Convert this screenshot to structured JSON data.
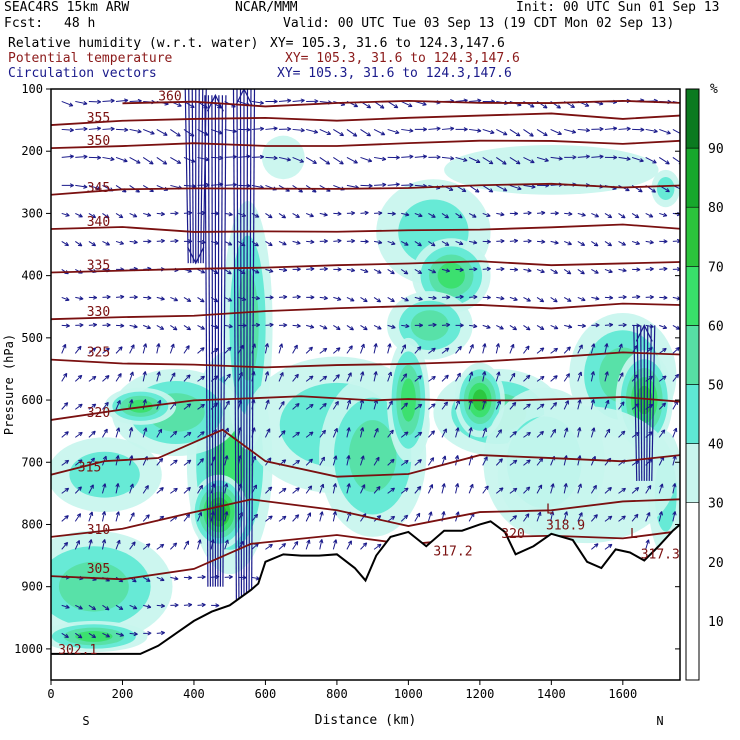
{
  "header": {
    "model": "SEAC4RS 15km ARW",
    "org": "NCAR/MMM",
    "init": "Init: 00 UTC Sun 01 Sep 13",
    "fcst_label": "Fcst:",
    "fcst_value": "48 h",
    "valid": "Valid: 00 UTC Tue 03 Sep 13 (19 CDT Mon 02 Sep 13)",
    "fields": [
      {
        "name": "Relative humidity (w.r.t. water)",
        "xy": "XY= 105.3, 31.6 to 124.3,147.6",
        "color": "#000000"
      },
      {
        "name": "Potential temperature",
        "xy": "XY= 105.3, 31.6 to 124.3,147.6",
        "color": "#8b1a1a"
      },
      {
        "name": "Circulation vectors",
        "xy": "XY= 105.3, 31.6 to 124.3,147.6",
        "color": "#1a1a8b"
      }
    ]
  },
  "chart_data": {
    "type": "heatmap",
    "xlabel": "Distance (km)",
    "ylabel": "Pressure (hPa)",
    "xlim": [
      0,
      1760
    ],
    "ylim": [
      1050,
      100
    ],
    "x_ticks": [
      0,
      200,
      400,
      600,
      800,
      1000,
      1200,
      1400,
      1600
    ],
    "y_ticks": [
      100,
      200,
      300,
      400,
      500,
      600,
      700,
      800,
      900,
      1000
    ],
    "x_end_labels": [
      "S",
      "N"
    ],
    "colorbar": {
      "unit": "%",
      "ticks": [
        10,
        20,
        30,
        40,
        50,
        60,
        70,
        80,
        90
      ],
      "bins": [
        {
          "from": 0,
          "to": 30,
          "color": "#ffffff"
        },
        {
          "from": 30,
          "to": 40,
          "color": "#c8f5ee"
        },
        {
          "from": 40,
          "to": 50,
          "color": "#5ee8d4"
        },
        {
          "from": 50,
          "to": 60,
          "color": "#57dfa4"
        },
        {
          "from": 60,
          "to": 70,
          "color": "#39e06a"
        },
        {
          "from": 70,
          "to": 80,
          "color": "#2bc43c"
        },
        {
          "from": 80,
          "to": 90,
          "color": "#17a82c"
        },
        {
          "from": 90,
          "to": 100,
          "color": "#0b7a20"
        }
      ]
    },
    "theta_contours": [
      {
        "label": "305",
        "points": [
          [
            0,
            883
          ],
          [
            200,
            885
          ],
          [
            400,
            870
          ],
          [
            560,
            830
          ],
          [
            800,
            820
          ],
          [
            1000,
            830
          ],
          [
            1200,
            820
          ],
          [
            1400,
            815
          ],
          [
            1600,
            820
          ],
          [
            1760,
            810
          ]
        ]
      },
      {
        "label": "310",
        "points": [
          [
            0,
            820
          ],
          [
            200,
            810
          ],
          [
            380,
            780
          ],
          [
            560,
            760
          ],
          [
            800,
            780
          ],
          [
            1000,
            800
          ],
          [
            1200,
            780
          ],
          [
            1400,
            780
          ],
          [
            1600,
            760
          ],
          [
            1760,
            760
          ]
        ]
      },
      {
        "label": "315",
        "points": [
          [
            0,
            720
          ],
          [
            150,
            700
          ],
          [
            300,
            690
          ],
          [
            480,
            650
          ],
          [
            600,
            700
          ],
          [
            800,
            720
          ],
          [
            1000,
            720
          ],
          [
            1200,
            690
          ],
          [
            1400,
            690
          ],
          [
            1600,
            700
          ],
          [
            1760,
            690
          ]
        ]
      },
      {
        "label": "320",
        "points": [
          [
            0,
            632
          ],
          [
            200,
            615
          ],
          [
            400,
            598
          ],
          [
            560,
            600
          ],
          [
            700,
            597
          ],
          [
            900,
            603
          ],
          [
            1000,
            598
          ],
          [
            1100,
            600
          ],
          [
            1300,
            598
          ],
          [
            1500,
            600
          ],
          [
            1600,
            598
          ],
          [
            1760,
            600
          ]
        ]
      },
      {
        "label": "325",
        "points": [
          [
            0,
            535
          ],
          [
            200,
            540
          ],
          [
            400,
            545
          ],
          [
            600,
            548
          ],
          [
            800,
            545
          ],
          [
            1000,
            540
          ],
          [
            1200,
            535
          ],
          [
            1400,
            530
          ],
          [
            1600,
            525
          ],
          [
            1760,
            530
          ]
        ]
      },
      {
        "label": "330",
        "points": [
          [
            0,
            470
          ],
          [
            200,
            468
          ],
          [
            400,
            465
          ],
          [
            600,
            460
          ],
          [
            800,
            455
          ],
          [
            1000,
            452
          ],
          [
            1200,
            450
          ],
          [
            1400,
            450
          ],
          [
            1600,
            445
          ],
          [
            1760,
            450
          ]
        ]
      },
      {
        "label": "335",
        "points": [
          [
            0,
            395
          ],
          [
            200,
            395
          ],
          [
            400,
            390
          ],
          [
            600,
            385
          ],
          [
            800,
            380
          ],
          [
            1000,
            378
          ],
          [
            1200,
            375
          ],
          [
            1400,
            380
          ],
          [
            1600,
            378
          ],
          [
            1760,
            380
          ]
        ]
      },
      {
        "label": "340",
        "points": [
          [
            0,
            325
          ],
          [
            200,
            325
          ],
          [
            400,
            328
          ],
          [
            600,
            330
          ],
          [
            800,
            328
          ],
          [
            1000,
            325
          ],
          [
            1200,
            325
          ],
          [
            1400,
            322
          ],
          [
            1600,
            320
          ],
          [
            1760,
            322
          ]
        ]
      },
      {
        "label": "345",
        "points": [
          [
            0,
            270
          ],
          [
            200,
            262
          ],
          [
            400,
            262
          ],
          [
            600,
            260
          ],
          [
            800,
            258
          ],
          [
            1000,
            256
          ],
          [
            1200,
            255
          ],
          [
            1400,
            255
          ],
          [
            1600,
            258
          ],
          [
            1760,
            258
          ]
        ]
      },
      {
        "label": "350",
        "points": [
          [
            0,
            195
          ],
          [
            200,
            190
          ],
          [
            400,
            188
          ],
          [
            600,
            190
          ],
          [
            800,
            190
          ],
          [
            1000,
            188
          ],
          [
            1200,
            186
          ],
          [
            1400,
            185
          ],
          [
            1600,
            185
          ],
          [
            1760,
            185
          ]
        ]
      },
      {
        "label": "355",
        "points": [
          [
            0,
            158
          ],
          [
            200,
            150
          ],
          [
            400,
            145
          ],
          [
            600,
            148
          ],
          [
            800,
            150
          ],
          [
            1000,
            148
          ],
          [
            1200,
            145
          ],
          [
            1400,
            142
          ],
          [
            1600,
            145
          ],
          [
            1760,
            145
          ]
        ]
      },
      {
        "label": "360",
        "points": [
          [
            200,
            123
          ],
          [
            400,
            120
          ],
          [
            600,
            125
          ],
          [
            800,
            125
          ],
          [
            1000,
            122
          ],
          [
            1200,
            122
          ],
          [
            1400,
            120
          ],
          [
            1600,
            122
          ],
          [
            1760,
            122
          ]
        ]
      }
    ],
    "point_labels": [
      {
        "text": "302.1",
        "x": 20,
        "p": 1008
      },
      {
        "text": "317.2",
        "x": 1070,
        "p": 850
      },
      {
        "text": "320",
        "x": 1260,
        "p": 822
      },
      {
        "text": "L",
        "x": 1385,
        "p": 782
      },
      {
        "text": "318.9",
        "x": 1385,
        "p": 808
      },
      {
        "text": "L",
        "x": 1620,
        "p": 822
      },
      {
        "text": "317.3",
        "x": 1650,
        "p": 855
      }
    ],
    "terrain": [
      [
        0,
        1008
      ],
      [
        250,
        1008
      ],
      [
        300,
        995
      ],
      [
        350,
        975
      ],
      [
        400,
        955
      ],
      [
        450,
        940
      ],
      [
        500,
        930
      ],
      [
        560,
        905
      ],
      [
        580,
        895
      ],
      [
        600,
        860
      ],
      [
        650,
        848
      ],
      [
        700,
        850
      ],
      [
        750,
        850
      ],
      [
        800,
        848
      ],
      [
        850,
        870
      ],
      [
        880,
        890
      ],
      [
        910,
        850
      ],
      [
        950,
        820
      ],
      [
        1000,
        812
      ],
      [
        1050,
        835
      ],
      [
        1100,
        810
      ],
      [
        1150,
        810
      ],
      [
        1200,
        800
      ],
      [
        1230,
        795
      ],
      [
        1270,
        812
      ],
      [
        1300,
        848
      ],
      [
        1350,
        835
      ],
      [
        1400,
        815
      ],
      [
        1460,
        825
      ],
      [
        1500,
        860
      ],
      [
        1540,
        870
      ],
      [
        1580,
        840
      ],
      [
        1620,
        845
      ],
      [
        1660,
        858
      ],
      [
        1700,
        835
      ],
      [
        1740,
        810
      ],
      [
        1760,
        800
      ]
    ],
    "moist_areas": [
      {
        "x": 1070,
        "p": 330,
        "rx": 160,
        "rp": 85,
        "rh": 50
      },
      {
        "x": 1120,
        "p": 400,
        "rx": 110,
        "rp": 60,
        "rh": 65
      },
      {
        "x": 1060,
        "p": 480,
        "rx": 120,
        "rp": 55,
        "rh": 60
      },
      {
        "x": 650,
        "p": 210,
        "rx": 60,
        "rp": 35,
        "rh": 40
      },
      {
        "x": 1400,
        "p": 230,
        "rx": 300,
        "rp": 40,
        "rh": 40
      },
      {
        "x": 1720,
        "p": 260,
        "rx": 40,
        "rp": 30,
        "rh": 50
      },
      {
        "x": 500,
        "p": 700,
        "rx": 120,
        "rp": 180,
        "rh": 70
      },
      {
        "x": 550,
        "p": 480,
        "rx": 70,
        "rp": 200,
        "rh": 55
      },
      {
        "x": 470,
        "p": 780,
        "rx": 80,
        "rp": 60,
        "rh": 85
      },
      {
        "x": 350,
        "p": 620,
        "rx": 180,
        "rp": 70,
        "rh": 60
      },
      {
        "x": 250,
        "p": 610,
        "rx": 100,
        "rp": 30,
        "rh": 70
      },
      {
        "x": 150,
        "p": 720,
        "rx": 160,
        "rp": 60,
        "rh": 45
      },
      {
        "x": 120,
        "p": 900,
        "rx": 220,
        "rp": 90,
        "rh": 55
      },
      {
        "x": 120,
        "p": 980,
        "rx": 150,
        "rp": 25,
        "rh": 70
      },
      {
        "x": 800,
        "p": 640,
        "rx": 260,
        "rp": 110,
        "rh": 45
      },
      {
        "x": 900,
        "p": 690,
        "rx": 150,
        "rp": 130,
        "rh": 55
      },
      {
        "x": 1000,
        "p": 600,
        "rx": 60,
        "rp": 100,
        "rh": 70
      },
      {
        "x": 1250,
        "p": 620,
        "rx": 180,
        "rp": 70,
        "rh": 60
      },
      {
        "x": 1200,
        "p": 600,
        "rx": 70,
        "rp": 60,
        "rh": 75
      },
      {
        "x": 1380,
        "p": 700,
        "rx": 170,
        "rp": 120,
        "rh": 45
      },
      {
        "x": 1600,
        "p": 560,
        "rx": 150,
        "rp": 100,
        "rh": 60
      },
      {
        "x": 1660,
        "p": 600,
        "rx": 80,
        "rp": 80,
        "rh": 80
      },
      {
        "x": 1720,
        "p": 750,
        "rx": 50,
        "rp": 100,
        "rh": 45
      },
      {
        "x": 1500,
        "p": 720,
        "rx": 250,
        "rp": 110,
        "rh": 40
      }
    ],
    "updrafts": [
      {
        "x": 405,
        "p_bottom": 380,
        "p_top": 100,
        "dir": "down"
      },
      {
        "x": 460,
        "p_bottom": 900,
        "p_top": 110,
        "dir": "up"
      },
      {
        "x": 540,
        "p_bottom": 950,
        "p_top": 100,
        "dir": "up"
      },
      {
        "x": 1660,
        "p_bottom": 730,
        "p_top": 480,
        "dir": "up"
      }
    ]
  }
}
